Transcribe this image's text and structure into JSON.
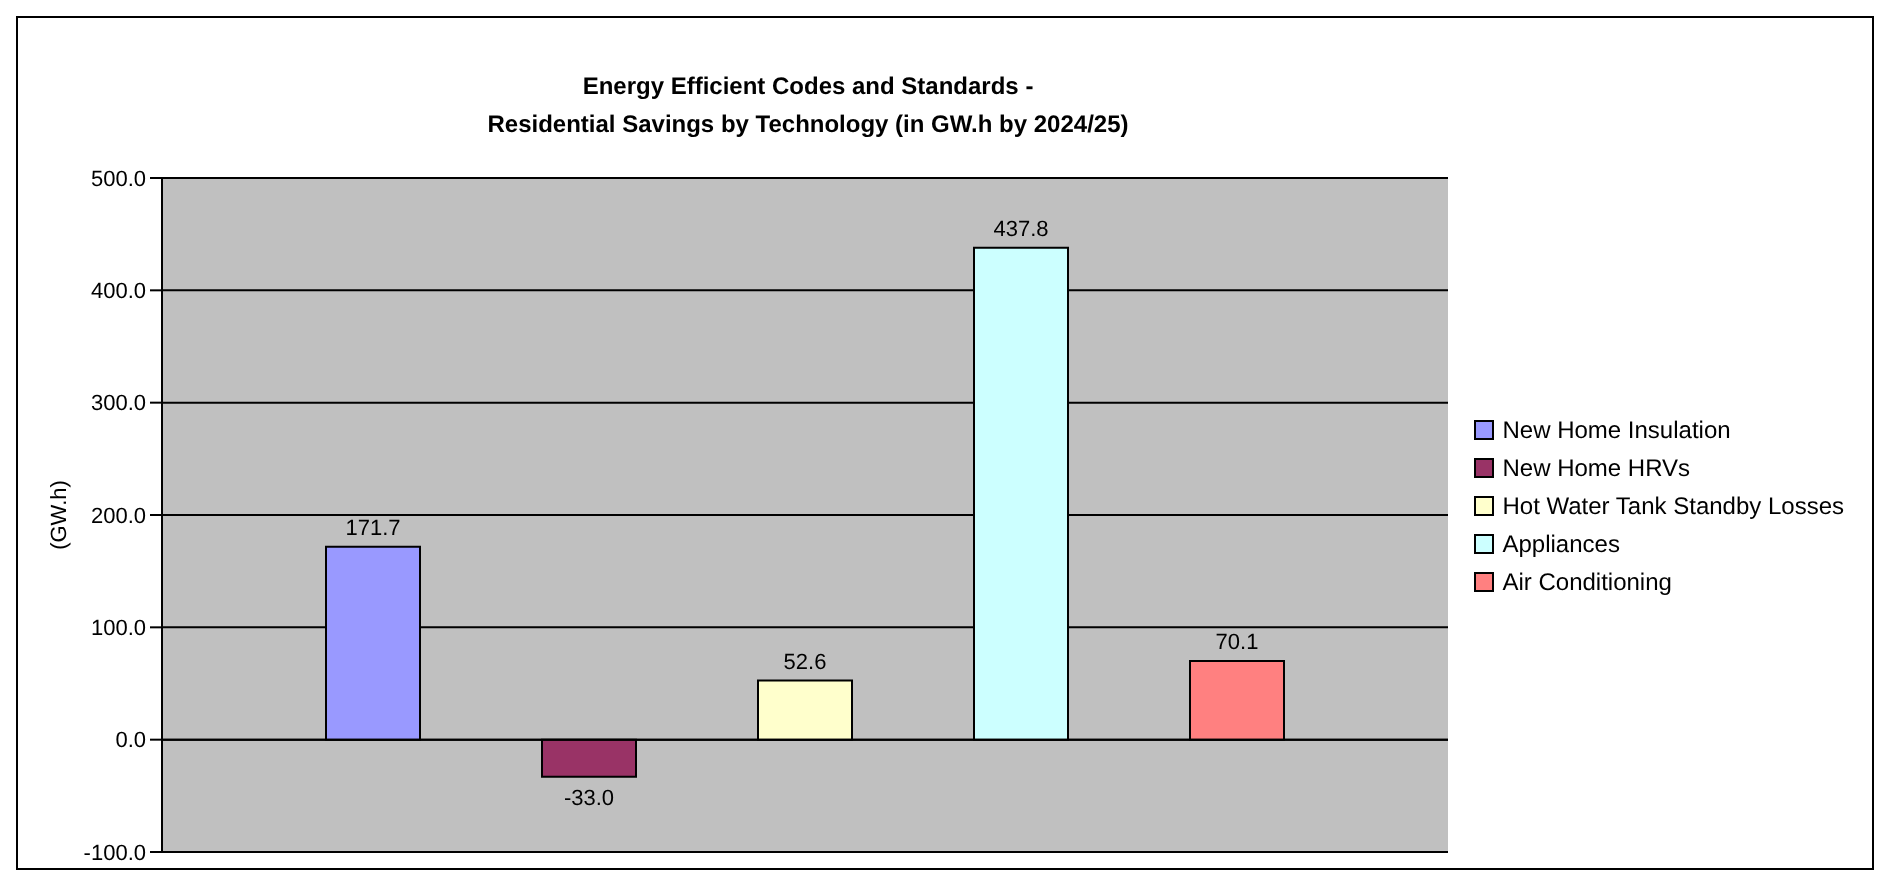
{
  "chart_data": {
    "type": "bar",
    "title": "Energy Efficient Codes and Standards -\nResidential Savings by Technology (in GW.h by 2024/25)",
    "ylabel": "(GW.h)",
    "categories": [
      null
    ],
    "series": [
      {
        "name": "New Home Insulation",
        "color": "#9999ff",
        "values": [
          171.7
        ],
        "value_labels": [
          "171.7"
        ]
      },
      {
        "name": "New Home HRVs",
        "color": "#993366",
        "values": [
          -33.0
        ],
        "value_labels": [
          "-33.0"
        ]
      },
      {
        "name": "Hot Water Tank Standby Losses",
        "color": "#ffffcc",
        "values": [
          52.6
        ],
        "value_labels": [
          "52.6"
        ]
      },
      {
        "name": "Appliances",
        "color": "#ccffff",
        "values": [
          437.8
        ],
        "value_labels": [
          "437.8"
        ]
      },
      {
        "name": "Air Conditioning",
        "color": "#ff8080",
        "values": [
          70.1
        ],
        "value_labels": [
          "70.1"
        ]
      }
    ],
    "ylim": [
      -100,
      500
    ],
    "yticks": [
      {
        "value": -100,
        "label": "-100.0"
      },
      {
        "value": 0,
        "label": "0.0"
      },
      {
        "value": 100,
        "label": "100.0"
      },
      {
        "value": 200,
        "label": "200.0"
      },
      {
        "value": 300,
        "label": "300.0"
      },
      {
        "value": 400,
        "label": "400.0"
      },
      {
        "value": 500,
        "label": "500.0"
      }
    ],
    "grid": "y",
    "legend": "right",
    "tick_labels": "y"
  }
}
